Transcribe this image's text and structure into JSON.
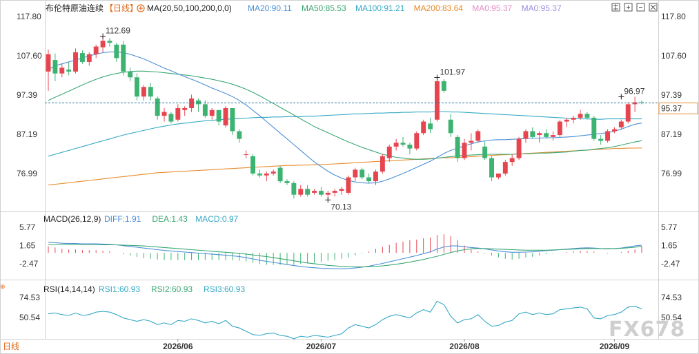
{
  "header": {
    "title": "布伦特原油连续",
    "period_badge": "【日线】",
    "ma_label": "MA(20,50,100,200,0,0)",
    "ma_values": [
      {
        "text": "MA20:90.11",
        "color": "#4b8fd6"
      },
      {
        "text": "MA50:85.53",
        "color": "#3aa774"
      },
      {
        "text": "MA100:91.21",
        "color": "#34a8c4"
      },
      {
        "text": "MA200:83.64",
        "color": "#e88b2b"
      },
      {
        "text": "MA0:95.37",
        "color": "#e58ec8"
      },
      {
        "text": "MA0:95.37",
        "color": "#9c8fe0"
      }
    ]
  },
  "toolbar_icons": [
    "settings-icon",
    "expand-icon",
    "collapse-icon",
    "close-icon"
  ],
  "footer": {
    "period_badge": "日线",
    "watermark": "FX678"
  },
  "macd": {
    "label": "MACD(26,12,9)",
    "values": [
      {
        "text": "DIFF:1.91",
        "color": "#4b8fd6"
      },
      {
        "text": "DEA:1.43",
        "color": "#3aa774"
      },
      {
        "text": "MACD:0.97",
        "color": "#34a8c4"
      }
    ],
    "ticks": [
      "5.77",
      "1.65",
      "-2.47"
    ]
  },
  "rsi": {
    "label": "RSI(14,14,14)",
    "values": [
      {
        "text": "RSI1:60.93",
        "color": "#34a8c4"
      },
      {
        "text": "RSI2:60.93",
        "color": "#3aa774"
      },
      {
        "text": "RSI3:60.93",
        "color": "#34a8c4"
      }
    ],
    "ticks": [
      "74.53",
      "50.54"
    ]
  },
  "chart_data": {
    "type": "candlestick",
    "price_ticks": [
      "117.80",
      "107.60",
      "97.39",
      "87.19",
      "76.99"
    ],
    "price_range": [
      70.13,
      117.8
    ],
    "last_price_label": "95.37",
    "annotations": [
      {
        "text": "112.69",
        "value": 112.69,
        "index": 8
      },
      {
        "text": "101.97",
        "value": 101.97,
        "index": 57
      },
      {
        "text": "70.13",
        "value": 70.13,
        "index": 41
      },
      {
        "text": "96.97",
        "value": 96.97,
        "index": 84
      }
    ],
    "x_ticks": [
      {
        "label": "2026/06",
        "index": 19
      },
      {
        "label": "2026/07",
        "index": 40
      },
      {
        "label": "2026/08",
        "index": 61
      },
      {
        "label": "2026/09",
        "index": 83
      }
    ],
    "colors": {
      "up": "#e64550",
      "down": "#3cb371"
    },
    "candles": [
      [
        103.5,
        109.2,
        98.5,
        108.0
      ],
      [
        106.5,
        108.2,
        101.0,
        103.0
      ],
      [
        103.0,
        105.5,
        102.0,
        104.5
      ],
      [
        104.0,
        106.0,
        102.5,
        103.5
      ],
      [
        103.5,
        109.5,
        103.0,
        108.5
      ],
      [
        108.3,
        109.0,
        105.5,
        106.0
      ],
      [
        106.0,
        108.5,
        105.0,
        108.0
      ],
      [
        108.0,
        110.5,
        107.0,
        110.0
      ],
      [
        109.8,
        112.69,
        108.5,
        111.5
      ],
      [
        111.5,
        112.2,
        110.0,
        111.0
      ],
      [
        110.5,
        111.0,
        106.0,
        107.0
      ],
      [
        110.5,
        111.5,
        102.5,
        103.5
      ],
      [
        103.5,
        104.5,
        101.0,
        102.0
      ],
      [
        102.0,
        103.0,
        96.0,
        97.0
      ],
      [
        97.0,
        100.0,
        96.0,
        99.5
      ],
      [
        99.5,
        100.5,
        96.0,
        97.0
      ],
      [
        96.5,
        97.0,
        91.0,
        92.0
      ],
      [
        92.0,
        94.0,
        90.5,
        93.0
      ],
      [
        92.5,
        93.0,
        90.0,
        90.5
      ],
      [
        91.0,
        95.0,
        90.5,
        94.0
      ],
      [
        93.5,
        94.5,
        92.0,
        94.0
      ],
      [
        94.0,
        97.5,
        93.0,
        96.5
      ],
      [
        96.0,
        96.5,
        93.0,
        95.0
      ],
      [
        95.0,
        96.0,
        91.5,
        92.0
      ],
      [
        92.0,
        94.0,
        91.0,
        93.5
      ],
      [
        93.5,
        93.5,
        89.5,
        90.5
      ],
      [
        89.5,
        94.5,
        89.0,
        94.0
      ],
      [
        94.0,
        94.0,
        87.0,
        88.0
      ],
      [
        88.0,
        88.5,
        85.0,
        86.0
      ],
      [
        82.0,
        83.0,
        81.0,
        82.0
      ],
      [
        81.5,
        82.0,
        76.5,
        77.0
      ],
      [
        77.0,
        78.0,
        76.0,
        76.5
      ],
      [
        76.5,
        77.5,
        75.0,
        77.0
      ],
      [
        77.0,
        78.0,
        76.5,
        77.5
      ],
      [
        78.5,
        79.0,
        74.5,
        75.0
      ],
      [
        75.0,
        75.5,
        74.0,
        74.5
      ],
      [
        74.5,
        75.0,
        70.5,
        71.5
      ],
      [
        71.5,
        74.0,
        71.0,
        73.0
      ],
      [
        73.0,
        74.0,
        71.0,
        71.5
      ],
      [
        72.0,
        73.0,
        71.5,
        72.5
      ],
      [
        72.5,
        73.5,
        71.0,
        71.5
      ],
      [
        71.5,
        72.5,
        70.13,
        72.0
      ],
      [
        72.0,
        73.0,
        71.0,
        72.5
      ],
      [
        72.5,
        73.5,
        71.5,
        73.0
      ],
      [
        72.0,
        76.5,
        71.5,
        76.0
      ],
      [
        76.0,
        78.5,
        75.0,
        78.0
      ],
      [
        78.0,
        78.5,
        75.5,
        76.0
      ],
      [
        76.0,
        77.0,
        74.5,
        75.0
      ],
      [
        75.0,
        78.0,
        74.0,
        77.5
      ],
      [
        77.5,
        82.0,
        77.0,
        81.5
      ],
      [
        81.0,
        84.5,
        80.0,
        84.0
      ],
      [
        84.0,
        86.0,
        83.0,
        85.0
      ],
      [
        85.0,
        86.5,
        84.0,
        84.5
      ],
      [
        84.5,
        85.0,
        82.0,
        83.5
      ],
      [
        83.5,
        88.0,
        83.0,
        87.5
      ],
      [
        87.5,
        91.0,
        87.0,
        90.5
      ],
      [
        90.0,
        91.5,
        87.5,
        88.5
      ],
      [
        91.0,
        101.97,
        90.5,
        101.0
      ],
      [
        101.0,
        101.5,
        98.0,
        98.5
      ],
      [
        91.0,
        92.5,
        86.5,
        87.5
      ],
      [
        86.5,
        87.0,
        80.0,
        81.0
      ],
      [
        81.0,
        86.0,
        80.5,
        85.0
      ],
      [
        85.0,
        87.5,
        83.0,
        85.5
      ],
      [
        85.5,
        88.5,
        85.0,
        88.0
      ],
      [
        84.0,
        85.5,
        80.5,
        81.0
      ],
      [
        81.0,
        81.5,
        75.0,
        76.0
      ],
      [
        76.0,
        77.0,
        75.5,
        77.0
      ],
      [
        77.0,
        80.5,
        76.5,
        80.0
      ],
      [
        80.0,
        82.0,
        79.0,
        81.0
      ],
      [
        81.0,
        86.5,
        80.5,
        86.0
      ],
      [
        86.0,
        88.5,
        85.0,
        88.0
      ],
      [
        88.0,
        89.0,
        86.0,
        86.5
      ],
      [
        87.0,
        88.0,
        85.0,
        87.5
      ],
      [
        87.5,
        88.5,
        86.0,
        86.5
      ],
      [
        86.5,
        88.0,
        85.5,
        87.0
      ],
      [
        87.0,
        91.0,
        86.5,
        90.5
      ],
      [
        90.5,
        91.5,
        89.0,
        91.0
      ],
      [
        91.0,
        92.0,
        90.0,
        91.5
      ],
      [
        91.5,
        93.5,
        91.0,
        92.5
      ],
      [
        92.5,
        93.0,
        91.0,
        91.5
      ],
      [
        91.5,
        92.0,
        85.5,
        86.0
      ],
      [
        86.0,
        87.0,
        84.5,
        85.5
      ],
      [
        85.5,
        88.5,
        85.0,
        88.0
      ],
      [
        88.0,
        89.0,
        87.5,
        88.5
      ],
      [
        89.0,
        91.0,
        88.5,
        90.5
      ],
      [
        90.5,
        95.5,
        90.0,
        95.0
      ],
      [
        95.0,
        96.97,
        93.0,
        95.5
      ],
      [
        95.5,
        96.0,
        95.0,
        95.37
      ]
    ],
    "ma20": [
      104.0,
      105.0,
      105.5,
      106.0,
      106.5,
      107.0,
      107.6,
      108.0,
      108.4,
      108.6,
      108.6,
      108.4,
      108.0,
      107.4,
      106.8,
      106.0,
      105.2,
      104.4,
      103.7,
      102.9,
      102.2,
      101.5,
      100.8,
      100.0,
      99.2,
      98.5,
      97.8,
      97.0,
      96.0,
      94.8,
      93.4,
      92.0,
      90.5,
      89.0,
      87.5,
      86.0,
      84.5,
      83.0,
      81.5,
      80.0,
      78.8,
      77.6,
      76.6,
      75.8,
      75.2,
      74.8,
      74.6,
      74.5,
      74.6,
      75.0,
      75.6,
      76.3,
      77.0,
      77.8,
      78.6,
      79.4,
      80.2,
      81.2,
      82.2,
      83.0,
      83.6,
      84.2,
      84.7,
      85.2,
      85.5,
      85.7,
      85.8,
      85.8,
      85.9,
      86.0,
      86.1,
      86.2,
      86.2,
      86.3,
      86.3,
      86.4,
      86.5,
      86.6,
      86.8,
      87.0,
      87.2,
      87.4,
      87.6,
      88.0,
      88.5,
      89.2,
      89.8,
      90.11
    ],
    "ma50": [
      96.0,
      96.8,
      97.6,
      98.4,
      99.2,
      100.0,
      100.8,
      101.5,
      102.1,
      102.6,
      103.0,
      103.3,
      103.5,
      103.6,
      103.6,
      103.5,
      103.4,
      103.2,
      103.0,
      102.8,
      102.6,
      102.4,
      102.1,
      101.8,
      101.5,
      101.1,
      100.7,
      100.2,
      99.6,
      98.9,
      98.1,
      97.2,
      96.2,
      95.2,
      94.2,
      93.2,
      92.2,
      91.2,
      90.2,
      89.2,
      88.4,
      87.6,
      86.8,
      86.0,
      85.2,
      84.5,
      83.8,
      83.2,
      82.6,
      82.0,
      81.6,
      81.2,
      81.0,
      80.8,
      80.7,
      80.7,
      80.8,
      81.0,
      81.2,
      81.4,
      81.6,
      81.7,
      81.8,
      81.9,
      82.0,
      82.0,
      82.0,
      82.0,
      82.0,
      82.1,
      82.1,
      82.2,
      82.3,
      82.3,
      82.4,
      82.5,
      82.6,
      82.8,
      83.0,
      83.1,
      83.3,
      83.5,
      83.7,
      84.0,
      84.4,
      84.8,
      85.2,
      85.53
    ],
    "ma100": [
      81.5,
      82.0,
      82.5,
      83.0,
      83.5,
      84.0,
      84.5,
      85.0,
      85.5,
      86.0,
      86.5,
      87.0,
      87.4,
      87.8,
      88.2,
      88.6,
      89.0,
      89.3,
      89.6,
      89.9,
      90.1,
      90.3,
      90.5,
      90.7,
      90.8,
      91.0,
      91.1,
      91.2,
      91.3,
      91.4,
      91.5,
      91.6,
      91.6,
      91.7,
      91.7,
      91.8,
      91.8,
      91.8,
      91.9,
      91.9,
      92.0,
      92.1,
      92.2,
      92.3,
      92.4,
      92.5,
      92.5,
      92.6,
      92.7,
      92.7,
      92.8,
      92.8,
      92.9,
      92.9,
      93.0,
      93.0,
      93.0,
      93.1,
      93.1,
      93.0,
      93.0,
      92.9,
      92.8,
      92.7,
      92.6,
      92.5,
      92.4,
      92.3,
      92.2,
      92.1,
      92.0,
      91.9,
      91.8,
      91.7,
      91.6,
      91.5,
      91.4,
      91.3,
      91.2,
      91.2,
      91.1,
      91.1,
      91.2,
      91.2,
      91.2,
      91.2,
      91.2,
      91.21
    ],
    "ma200": [
      74.0,
      74.2,
      74.4,
      74.6,
      74.8,
      75.0,
      75.2,
      75.4,
      75.6,
      75.8,
      76.0,
      76.2,
      76.4,
      76.6,
      76.8,
      77.0,
      77.2,
      77.3,
      77.4,
      77.5,
      77.6,
      77.7,
      77.8,
      77.9,
      78.0,
      78.1,
      78.2,
      78.3,
      78.4,
      78.5,
      78.6,
      78.7,
      78.8,
      78.9,
      79.0,
      79.1,
      79.1,
      79.2,
      79.2,
      79.3,
      79.3,
      79.4,
      79.5,
      79.6,
      79.7,
      79.8,
      79.9,
      80.0,
      80.1,
      80.2,
      80.3,
      80.4,
      80.5,
      80.6,
      80.7,
      80.8,
      80.9,
      81.0,
      81.1,
      81.1,
      81.2,
      81.3,
      81.4,
      81.5,
      81.6,
      81.7,
      81.8,
      81.9,
      82.0,
      82.1,
      82.2,
      82.3,
      82.4,
      82.5,
      82.6,
      82.7,
      82.8,
      82.9,
      83.0,
      83.1,
      83.2,
      83.3,
      83.4,
      83.5,
      83.55,
      83.6,
      83.62,
      83.64
    ],
    "macd_diff": [
      3.0,
      2.8,
      2.6,
      2.5,
      2.5,
      2.4,
      2.4,
      2.4,
      2.3,
      2.2,
      2.0,
      1.7,
      1.4,
      1.1,
      0.8,
      0.5,
      0.2,
      -0.1,
      -0.3,
      -0.5,
      -0.7,
      -0.9,
      -1.1,
      -1.3,
      -1.5,
      -1.7,
      -1.9,
      -2.1,
      -2.4,
      -2.8,
      -3.3,
      -3.8,
      -4.2,
      -4.6,
      -5.0,
      -5.4,
      -5.8,
      -6.1,
      -6.4,
      -6.6,
      -6.8,
      -6.9,
      -7.0,
      -7.0,
      -6.9,
      -6.7,
      -6.4,
      -6.0,
      -5.5,
      -5.0,
      -4.4,
      -3.8,
      -3.2,
      -2.6,
      -2.0,
      -1.3,
      -0.6,
      0.4,
      1.2,
      1.6,
      1.6,
      1.3,
      1.0,
      0.8,
      0.5,
      0.1,
      -0.3,
      -0.6,
      -0.8,
      -0.8,
      -0.7,
      -0.6,
      -0.4,
      -0.2,
      0.0,
      0.2,
      0.4,
      0.6,
      0.8,
      0.9,
      0.8,
      0.6,
      0.5,
      0.6,
      0.8,
      1.2,
      1.6,
      1.91
    ],
    "macd_dea": [
      2.0,
      2.0,
      2.0,
      2.0,
      2.0,
      2.0,
      2.0,
      2.0,
      2.0,
      2.0,
      2.0,
      1.9,
      1.8,
      1.7,
      1.6,
      1.4,
      1.2,
      1.0,
      0.8,
      0.6,
      0.4,
      0.2,
      0.0,
      -0.2,
      -0.4,
      -0.6,
      -0.8,
      -1.0,
      -1.2,
      -1.5,
      -1.8,
      -2.1,
      -2.4,
      -2.8,
      -3.2,
      -3.6,
      -4.0,
      -4.4,
      -4.8,
      -5.1,
      -5.4,
      -5.7,
      -5.9,
      -6.1,
      -6.2,
      -6.3,
      -6.3,
      -6.2,
      -6.1,
      -5.9,
      -5.6,
      -5.3,
      -4.9,
      -4.5,
      -4.0,
      -3.5,
      -2.9,
      -2.3,
      -1.6,
      -0.9,
      -0.3,
      0.2,
      0.5,
      0.6,
      0.6,
      0.5,
      0.4,
      0.3,
      0.2,
      0.1,
      0.0,
      0.0,
      0.0,
      0.0,
      0.1,
      0.2,
      0.3,
      0.4,
      0.5,
      0.6,
      0.6,
      0.6,
      0.6,
      0.6,
      0.7,
      0.9,
      1.1,
      1.43
    ],
    "macd_hist": [
      1.0,
      0.8,
      0.6,
      0.5,
      0.5,
      0.4,
      0.4,
      0.4,
      0.3,
      0.2,
      0.0,
      -0.2,
      -0.4,
      -0.6,
      -0.8,
      -0.9,
      -1.0,
      -1.1,
      -1.1,
      -1.1,
      -1.1,
      -1.1,
      -1.1,
      -1.1,
      -1.1,
      -1.1,
      -1.1,
      -1.1,
      -1.2,
      -1.3,
      -1.5,
      -1.7,
      -1.8,
      -1.8,
      -1.8,
      -1.8,
      -1.8,
      -1.7,
      -1.6,
      -1.5,
      -1.4,
      -1.2,
      -1.1,
      -0.9,
      -0.7,
      -0.4,
      -0.1,
      0.2,
      0.6,
      0.9,
      1.2,
      1.5,
      1.7,
      1.9,
      2.0,
      2.2,
      2.3,
      2.7,
      2.8,
      2.5,
      1.9,
      1.1,
      0.5,
      0.2,
      -0.1,
      -0.4,
      -0.7,
      -0.9,
      -1.0,
      -0.9,
      -0.7,
      -0.6,
      -0.4,
      -0.2,
      -0.1,
      0.0,
      0.1,
      0.2,
      0.3,
      0.3,
      0.2,
      0.0,
      -0.1,
      0.0,
      0.1,
      0.3,
      0.5,
      0.97
    ],
    "rsi": [
      55,
      56,
      54,
      53,
      56,
      53,
      54,
      57,
      58,
      57,
      54,
      50,
      48,
      46,
      48,
      46,
      42,
      44,
      42,
      47,
      46,
      49,
      47,
      44,
      46,
      43,
      47,
      40,
      38,
      34,
      30,
      29,
      31,
      32,
      29,
      28,
      25,
      28,
      27,
      29,
      28,
      27,
      29,
      31,
      38,
      42,
      40,
      38,
      42,
      48,
      52,
      54,
      52,
      50,
      56,
      60,
      57,
      70,
      66,
      52,
      44,
      48,
      49,
      54,
      46,
      40,
      41,
      45,
      47,
      55,
      57,
      54,
      56,
      54,
      55,
      60,
      61,
      62,
      63,
      61,
      50,
      49,
      53,
      54,
      57,
      63,
      64,
      60.93
    ]
  }
}
